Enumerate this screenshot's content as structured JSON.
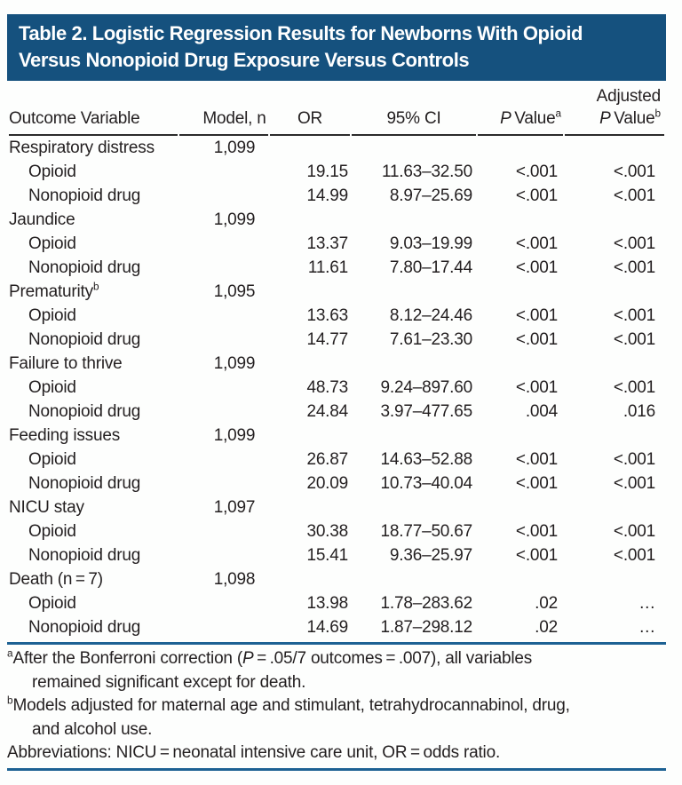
{
  "title": {
    "line1": "Table 2. Logistic Regression Results for Newborns With Opioid",
    "line2": "Versus Nonopioid Drug Exposure Versus Controls"
  },
  "table": {
    "headers": {
      "outcome": "Outcome Variable",
      "model": "Model, n",
      "or": "OR",
      "ci": "95% CI",
      "p_italic": "P",
      "p_label": " Value",
      "p_sup": "a",
      "adj_line1": "Adjusted",
      "adj_p_italic": "P",
      "adj_p_label": " Value",
      "adj_p_sup": "b"
    },
    "rows": [
      {
        "label": "Respiratory distress",
        "model_n": "1,099"
      },
      {
        "label": "Opioid",
        "indent": true,
        "or": "19.15",
        "ci": "11.63–32.50",
        "p": "<.001",
        "adj_p": "<.001"
      },
      {
        "label": "Nonopioid drug",
        "indent": true,
        "or": "14.99",
        "ci": "8.97–25.69",
        "p": "<.001",
        "adj_p": "<.001"
      },
      {
        "label": "Jaundice",
        "model_n": "1,099"
      },
      {
        "label": "Opioid",
        "indent": true,
        "or": "13.37",
        "ci": "9.03–19.99",
        "p": "<.001",
        "adj_p": "<.001"
      },
      {
        "label": "Nonopioid drug",
        "indent": true,
        "or": "11.61",
        "ci": "7.80–17.44",
        "p": "<.001",
        "adj_p": "<.001"
      },
      {
        "label": "Prematurity",
        "sup": "b",
        "model_n": "1,095"
      },
      {
        "label": "Opioid",
        "indent": true,
        "or": "13.63",
        "ci": "8.12–24.46",
        "p": "<.001",
        "adj_p": "<.001"
      },
      {
        "label": "Nonopioid drug",
        "indent": true,
        "or": "14.77",
        "ci": "7.61–23.30",
        "p": "<.001",
        "adj_p": "<.001"
      },
      {
        "label": "Failure to thrive",
        "model_n": "1,099"
      },
      {
        "label": "Opioid",
        "indent": true,
        "or": "48.73",
        "ci": "9.24–897.60",
        "p": "<.001",
        "adj_p": "<.001"
      },
      {
        "label": "Nonopioid drug",
        "indent": true,
        "or": "24.84",
        "ci": "3.97–477.65",
        "p": ".004",
        "adj_p": ".016"
      },
      {
        "label": "Feeding issues",
        "model_n": "1,099"
      },
      {
        "label": "Opioid",
        "indent": true,
        "or": "26.87",
        "ci": "14.63–52.88",
        "p": "<.001",
        "adj_p": "<.001"
      },
      {
        "label": "Nonopioid drug",
        "indent": true,
        "or": "20.09",
        "ci": "10.73–40.04",
        "p": "<.001",
        "adj_p": "<.001"
      },
      {
        "label": "NICU stay",
        "model_n": "1,097"
      },
      {
        "label": "Opioid",
        "indent": true,
        "or": "30.38",
        "ci": "18.77–50.67",
        "p": "<.001",
        "adj_p": "<.001"
      },
      {
        "label": "Nonopioid drug",
        "indent": true,
        "or": "15.41",
        "ci": "9.36–25.97",
        "p": "<.001",
        "adj_p": "<.001"
      },
      {
        "label": "Death (n = 7)",
        "model_n": "1,098"
      },
      {
        "label": "Opioid",
        "indent": true,
        "or": "13.98",
        "ci": "1.78–283.62",
        "p": ".02",
        "adj_p": "…"
      },
      {
        "label": "Nonopioid drug",
        "indent": true,
        "or": "14.69",
        "ci": "1.87–298.12",
        "p": ".02",
        "adj_p": "…"
      }
    ]
  },
  "footnotes": {
    "a": {
      "sup": "a",
      "line1_pre": "After the Bonferroni correction (",
      "line1_italic": "P",
      "line1_post": " = .05/7 outcomes = .007), all variables",
      "line2": "remained significant except for death."
    },
    "b": {
      "sup": "b",
      "line1": "Models adjusted for maternal age and stimulant, tetrahydrocannabinol, drug,",
      "line2": "and alcohol use."
    },
    "abbreviations": "Abbreviations: NICU = neonatal intensive care unit, OR = odds ratio."
  },
  "colors": {
    "header_bg": "#15517e",
    "rule_blue": "#1d6193",
    "header_rule_dark": "#2b2b2b",
    "text": "#231f20"
  }
}
